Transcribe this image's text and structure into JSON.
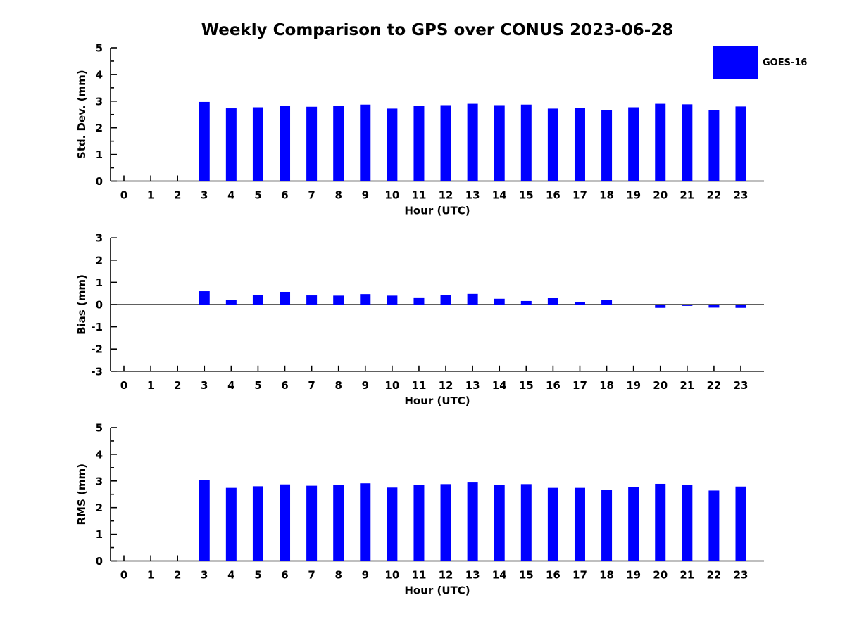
{
  "title": "Weekly Comparison to GPS over CONUS 2023-06-28",
  "legend": {
    "label": "GOES-16",
    "color": "#0000FF",
    "position": "top-right"
  },
  "bar_color": "#0000FF",
  "chart_data": [
    {
      "type": "bar",
      "name": "stddev",
      "ylabel": "Std. Dev. (mm)",
      "xlabel": "Hour (UTC)",
      "ylim": [
        0,
        5
      ],
      "yticks": [
        0,
        1,
        2,
        3,
        4,
        5
      ],
      "minor_ytick_step": 0.5,
      "grid": false,
      "zero_line": false,
      "categories": [
        "0",
        "1",
        "2",
        "3",
        "4",
        "5",
        "6",
        "7",
        "8",
        "9",
        "10",
        "11",
        "12",
        "13",
        "14",
        "15",
        "16",
        "17",
        "18",
        "19",
        "20",
        "21",
        "22",
        "23"
      ],
      "values": [
        null,
        null,
        null,
        2.97,
        2.73,
        2.77,
        2.82,
        2.79,
        2.82,
        2.87,
        2.72,
        2.82,
        2.85,
        2.9,
        2.85,
        2.87,
        2.72,
        2.75,
        2.66,
        2.77,
        2.9,
        2.88,
        2.66,
        2.8
      ]
    },
    {
      "type": "bar",
      "name": "bias",
      "ylabel": "Bias (mm)",
      "xlabel": "Hour (UTC)",
      "ylim": [
        -3,
        3
      ],
      "yticks": [
        -3,
        -2,
        -1,
        0,
        1,
        2,
        3
      ],
      "minor_ytick_step": 0,
      "grid": false,
      "zero_line": true,
      "categories": [
        "0",
        "1",
        "2",
        "3",
        "4",
        "5",
        "6",
        "7",
        "8",
        "9",
        "10",
        "11",
        "12",
        "13",
        "14",
        "15",
        "16",
        "17",
        "18",
        "19",
        "20",
        "21",
        "22",
        "23"
      ],
      "values": [
        null,
        null,
        null,
        0.6,
        0.22,
        0.44,
        0.57,
        0.41,
        0.4,
        0.47,
        0.4,
        0.32,
        0.42,
        0.48,
        0.26,
        0.16,
        0.3,
        0.12,
        0.22,
        0.0,
        -0.15,
        -0.06,
        -0.14,
        -0.15
      ]
    },
    {
      "type": "bar",
      "name": "rms",
      "ylabel": "RMS (mm)",
      "xlabel": "Hour (UTC)",
      "ylim": [
        0,
        5
      ],
      "yticks": [
        0,
        1,
        2,
        3,
        4,
        5
      ],
      "minor_ytick_step": 0.5,
      "grid": false,
      "zero_line": false,
      "categories": [
        "0",
        "1",
        "2",
        "3",
        "4",
        "5",
        "6",
        "7",
        "8",
        "9",
        "10",
        "11",
        "12",
        "13",
        "14",
        "15",
        "16",
        "17",
        "18",
        "19",
        "20",
        "21",
        "22",
        "23"
      ],
      "values": [
        null,
        null,
        null,
        3.03,
        2.74,
        2.8,
        2.87,
        2.82,
        2.85,
        2.91,
        2.75,
        2.84,
        2.88,
        2.94,
        2.86,
        2.88,
        2.74,
        2.74,
        2.67,
        2.77,
        2.89,
        2.86,
        2.64,
        2.79
      ]
    }
  ]
}
